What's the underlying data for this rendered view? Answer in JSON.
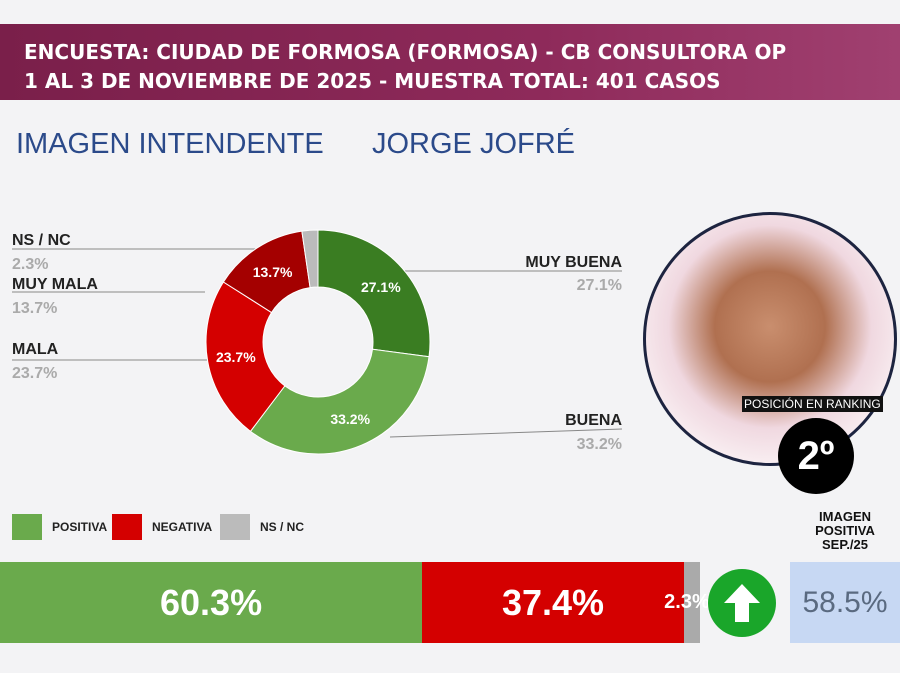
{
  "header": {
    "line1": "ENCUESTA: CIUDAD DE FORMOSA (FORMOSA) - CB CONSULTORA OP",
    "line2": "1 AL 3 DE NOVIEMBRE DE 2025 - MUESTRA TOTAL: 401 CASOS"
  },
  "subtitle": {
    "left": "IMAGEN INTENDENTE",
    "right": "JORGE JOFRÉ"
  },
  "chart_data": [
    {
      "type": "pie",
      "donut": true,
      "categories": [
        "MUY BUENA",
        "BUENA",
        "MALA",
        "MUY MALA",
        "NS / NC"
      ],
      "values": [
        27.1,
        33.2,
        23.7,
        13.7,
        2.3
      ],
      "labels": [
        "27.1%",
        "33.2%",
        "23.7%",
        "13.7%",
        "2.3%"
      ],
      "colors": [
        "#3a7d22",
        "#6aaa4c",
        "#d40000",
        "#a40000",
        "#bbbbbb"
      ]
    },
    {
      "type": "bar",
      "stacked": true,
      "orientation": "horizontal",
      "categories": [
        "POSITIVA",
        "NEGATIVA",
        "NS / NC"
      ],
      "values": [
        60.3,
        37.4,
        2.3
      ],
      "labels": [
        "60.3%",
        "37.4%",
        "2.3%"
      ],
      "colors": [
        "#6aaa4c",
        "#d40000",
        "#aaaaaa"
      ]
    }
  ],
  "ranking": {
    "label": "POSICIÓN EN RANKING",
    "value": "2º"
  },
  "previous": {
    "label_lines": [
      "IMAGEN",
      "POSITIVA",
      "SEP./25"
    ],
    "value": "58.5%",
    "trend": "arrow-up-icon"
  }
}
